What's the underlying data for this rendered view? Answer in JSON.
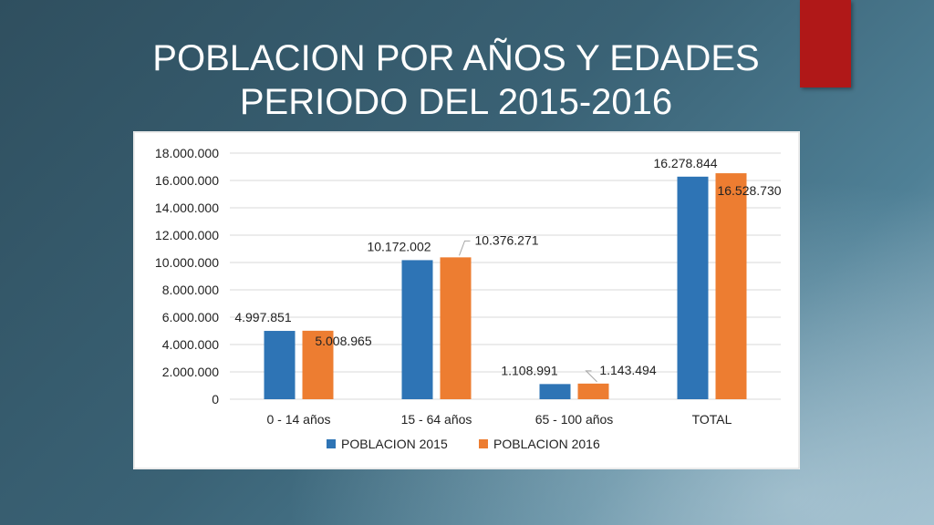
{
  "slide": {
    "title_line1": "POBLACION POR AÑOS Y EDADES",
    "title_line2": "PERIODO DEL 2015-2016"
  },
  "chart_data": {
    "type": "bar",
    "title": "",
    "xlabel": "",
    "ylabel": "",
    "categories": [
      "0 - 14 años",
      "15 - 64 años",
      "65 - 100 años",
      "TOTAL"
    ],
    "series": [
      {
        "name": "POBLACION 2015",
        "color": "#2e74b5",
        "values": [
          4997851,
          10172002,
          1108991,
          16278844
        ],
        "labels": [
          "4.997.851",
          "10.172.002",
          "1.108.991",
          "16.278.844"
        ]
      },
      {
        "name": "POBLACION 2016",
        "color": "#ed7d31",
        "values": [
          5008965,
          10376271,
          1143494,
          16528730
        ],
        "labels": [
          "5.008.965",
          "10.376.271",
          "1.143.494",
          "16.528.730"
        ]
      }
    ],
    "ylim": [
      0,
      18000000
    ],
    "yticks": [
      0,
      2000000,
      4000000,
      6000000,
      8000000,
      10000000,
      12000000,
      14000000,
      16000000,
      18000000
    ],
    "ytick_labels": [
      "0",
      "2.000.000",
      "4.000.000",
      "6.000.000",
      "8.000.000",
      "10.000.000",
      "12.000.000",
      "14.000.000",
      "16.000.000",
      "18.000.000"
    ],
    "grid": true,
    "legend": "bottom"
  }
}
